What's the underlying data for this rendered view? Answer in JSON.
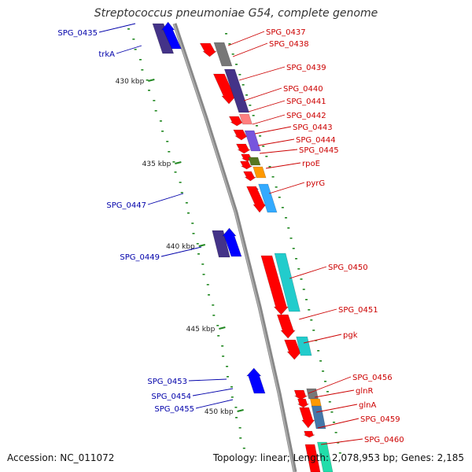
{
  "title": "Streptococcus pneumoniae G54, complete genome",
  "footer": {
    "accession": "Accession: NC_011072",
    "summary": "Topology: linear; Length: 2,078,953 bp; Genes: 2,185"
  },
  "scale_labels": [
    "430 kbp",
    "435 kbp",
    "440 kbp",
    "445 kbp",
    "450 kbp"
  ],
  "colors": {
    "backbone": "#888888",
    "left_label": "#0000aa",
    "right_label": "#cc0000",
    "tick": "#228822",
    "red": "#ff0000",
    "blue": "#0000ff",
    "indigo": "#443388",
    "gray": "#777777",
    "pink": "#ff8080",
    "violet": "#7755dd",
    "olive": "#557722",
    "orange": "#ff9900",
    "cyan": "#22cccc",
    "sky": "#33aaff",
    "steel": "#4477aa",
    "teal": "#22ddaa"
  },
  "left_labels": [
    "SPG_0435",
    "trkA",
    "SPG_0447",
    "SPG_0449",
    "SPG_0453",
    "SPG_0454",
    "SPG_0455"
  ],
  "right_labels": [
    "SPG_0437",
    "SPG_0438",
    "SPG_0439",
    "SPG_0440",
    "SPG_0441",
    "SPG_0442",
    "SPG_0443",
    "SPG_0444",
    "SPG_0445",
    "rpoE",
    "pyrG",
    "SPG_0450",
    "SPG_0451",
    "pgk",
    "SPG_0456",
    "glnR",
    "glnA",
    "SPG_0459",
    "SPG_0460"
  ]
}
